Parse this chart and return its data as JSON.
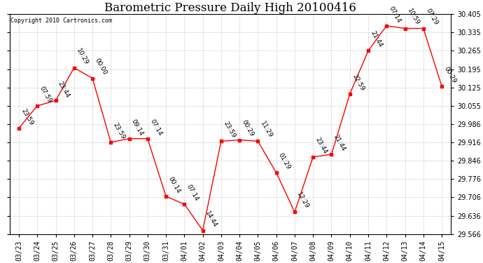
{
  "title": "Barometric Pressure Daily High 20100416",
  "copyright": "Copyright 2010 Cartronics.com",
  "line_color": "red",
  "marker_color": "red",
  "bg_color": "white",
  "grid_color": "#cccccc",
  "text_color": "black",
  "x_labels": [
    "03/23",
    "03/24",
    "03/25",
    "03/26",
    "03/27",
    "03/28",
    "03/29",
    "03/30",
    "03/31",
    "04/01",
    "04/02",
    "04/03",
    "04/04",
    "04/05",
    "04/06",
    "04/07",
    "04/08",
    "04/09",
    "04/10",
    "04/11",
    "04/12",
    "04/13",
    "04/14",
    "04/15"
  ],
  "y_values": [
    29.97,
    30.055,
    30.075,
    30.2,
    30.16,
    29.916,
    29.93,
    29.93,
    29.71,
    29.68,
    29.58,
    29.92,
    29.925,
    29.92,
    29.8,
    29.65,
    29.86,
    29.87,
    30.1,
    30.265,
    30.36,
    30.35,
    30.35,
    30.13
  ],
  "time_labels": [
    "23:59",
    "07:59",
    "23:44",
    "10:29",
    "00:00",
    "23:59",
    "09:14",
    "07:14",
    "00:14",
    "07:14",
    "14:44",
    "23:59",
    "00:29",
    "11:29",
    "01:29",
    "12:29",
    "23:44",
    "21:44",
    "22:59",
    "21:44",
    "07:14",
    "10:59",
    "07:29",
    "00:29"
  ],
  "ylim_min": 29.566,
  "ylim_max": 30.405,
  "yticks": [
    29.566,
    29.636,
    29.706,
    29.776,
    29.846,
    29.916,
    29.986,
    30.055,
    30.125,
    30.195,
    30.265,
    30.335,
    30.405
  ],
  "title_fontsize": 12,
  "label_fontsize": 6.5,
  "tick_fontsize": 7,
  "copyright_fontsize": 6
}
